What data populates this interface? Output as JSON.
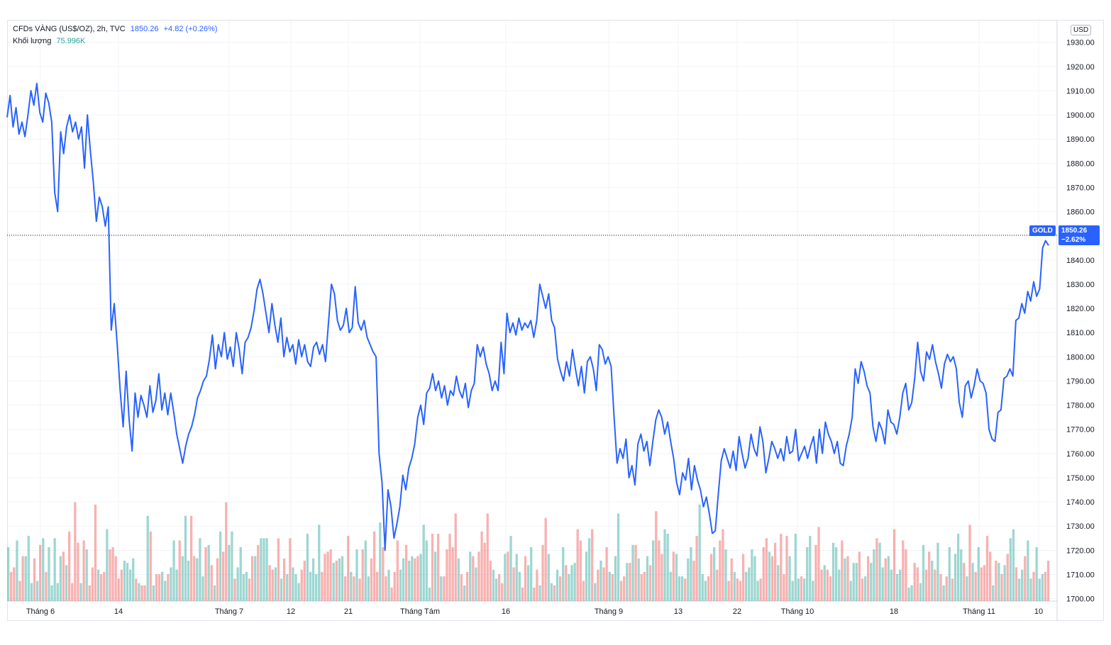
{
  "legend": {
    "symbol": "CFDs VÀNG (US$/OZ), 2h, TVC",
    "last_price": "1850.26",
    "change": "+4.82 (+0.26%)",
    "volume_label": "Khối lượng",
    "volume_value": "75.996K"
  },
  "axis": {
    "currency": "USD",
    "last_label": "GOLD",
    "last_price": "1850.26",
    "last_change_pct": "−2.62%"
  },
  "colors": {
    "line": "#2962ff",
    "vol_up": "#26a69a",
    "vol_down": "#ef5350",
    "grid": "#f0f3fa",
    "text": "#131722"
  },
  "chart_data": {
    "type": "line",
    "x_ticks": [
      "Tháng 6",
      "14",
      "Tháng 7",
      "12",
      "21",
      "Tháng Tám",
      "16",
      "Tháng 9",
      "13",
      "22",
      "Tháng 10",
      "18",
      "Tháng 11",
      "10"
    ],
    "y_ticks": [
      1700,
      1710,
      1720,
      1730,
      1740,
      1750,
      1760,
      1770,
      1780,
      1790,
      1800,
      1810,
      1820,
      1830,
      1840,
      1850,
      1860,
      1870,
      1880,
      1890,
      1900,
      1910,
      1920,
      1930
    ],
    "ylim": [
      1699,
      1939
    ],
    "last_price": 1850.26,
    "grid": true,
    "series": [
      {
        "price": [
          1899,
          1908,
          1895,
          1903,
          1892,
          1897,
          1891,
          1900,
          1910,
          1904,
          1913,
          1901,
          1897,
          1909,
          1905,
          1897,
          1868,
          1860,
          1893,
          1884,
          1895,
          1900,
          1893,
          1897,
          1890,
          1895,
          1878,
          1900,
          1885,
          1872,
          1856,
          1866,
          1862,
          1854,
          1862,
          1811,
          1822,
          1805,
          1786,
          1771,
          1794,
          1774,
          1761,
          1785,
          1775,
          1784,
          1780,
          1775,
          1788,
          1777,
          1782,
          1793,
          1778,
          1785,
          1776,
          1785,
          1777,
          1768,
          1762,
          1756,
          1763,
          1768,
          1771,
          1776,
          1783,
          1786,
          1790,
          1792,
          1799,
          1809,
          1795,
          1805,
          1800,
          1810,
          1799,
          1804,
          1796,
          1810,
          1803,
          1793,
          1806,
          1808,
          1812,
          1819,
          1828,
          1832,
          1826,
          1818,
          1810,
          1822,
          1813,
          1806,
          1816,
          1800,
          1808,
          1802,
          1805,
          1797,
          1807,
          1800,
          1805,
          1798,
          1796,
          1804,
          1806,
          1801,
          1805,
          1798,
          1814,
          1830,
          1826,
          1815,
          1811,
          1813,
          1820,
          1810,
          1812,
          1829,
          1814,
          1811,
          1815,
          1808,
          1805,
          1802,
          1800,
          1760,
          1748,
          1720,
          1745,
          1738,
          1725,
          1731,
          1738,
          1751,
          1745,
          1754,
          1758,
          1764,
          1775,
          1780,
          1772,
          1785,
          1787,
          1793,
          1786,
          1790,
          1783,
          1788,
          1780,
          1786,
          1784,
          1792,
          1786,
          1783,
          1789,
          1779,
          1786,
          1789,
          1805,
          1800,
          1804,
          1797,
          1793,
          1786,
          1790,
          1786,
          1806,
          1793,
          1818,
          1810,
          1814,
          1809,
          1816,
          1811,
          1814,
          1812,
          1815,
          1808,
          1815,
          1830,
          1825,
          1820,
          1826,
          1815,
          1812,
          1799,
          1794,
          1790,
          1798,
          1792,
          1803,
          1795,
          1788,
          1796,
          1785,
          1798,
          1800,
          1795,
          1786,
          1805,
          1803,
          1797,
          1800,
          1796,
          1775,
          1756,
          1762,
          1758,
          1766,
          1750,
          1755,
          1747,
          1764,
          1768,
          1761,
          1765,
          1755,
          1765,
          1774,
          1778,
          1775,
          1768,
          1773,
          1765,
          1758,
          1748,
          1743,
          1752,
          1749,
          1758,
          1745,
          1755,
          1749,
          1745,
          1738,
          1742,
          1735,
          1727,
          1728,
          1743,
          1757,
          1762,
          1758,
          1754,
          1761,
          1753,
          1767,
          1760,
          1754,
          1758,
          1768,
          1762,
          1759,
          1771,
          1765,
          1752,
          1758,
          1765,
          1762,
          1758,
          1762,
          1757,
          1767,
          1760,
          1761,
          1770,
          1757,
          1760,
          1763,
          1758,
          1763,
          1767,
          1756,
          1770,
          1760,
          1773,
          1768,
          1765,
          1760,
          1765,
          1756,
          1755,
          1763,
          1768,
          1775,
          1795,
          1789,
          1798,
          1794,
          1788,
          1785,
          1771,
          1765,
          1773,
          1770,
          1764,
          1778,
          1773,
          1772,
          1768,
          1775,
          1785,
          1789,
          1778,
          1781,
          1791,
          1806,
          1794,
          1790,
          1802,
          1799,
          1805,
          1798,
          1793,
          1787,
          1797,
          1801,
          1798,
          1800,
          1795,
          1781,
          1775,
          1788,
          1790,
          1783,
          1788,
          1795,
          1790,
          1789,
          1785,
          1770,
          1766,
          1765,
          1777,
          1778,
          1791,
          1792,
          1795,
          1792,
          1815,
          1816,
          1822,
          1818,
          1827,
          1823,
          1831,
          1825,
          1828,
          1845,
          1848,
          1846
        ]
      },
      {
        "volume": [
          24,
          13,
          15,
          27,
          9,
          20,
          20,
          29,
          8,
          19,
          9,
          25,
          28,
          13,
          24,
          7,
          28,
          8,
          20,
          22,
          16,
          31,
          8,
          44,
          26,
          8,
          27,
          23,
          7,
          15,
          43,
          14,
          12,
          13,
          32,
          23,
          24,
          20,
          10,
          14,
          18,
          17,
          14,
          19,
          10,
          8,
          7,
          7,
          38,
          31,
          7,
          12,
          12,
          13,
          9,
          12,
          15,
          27,
          14,
          27,
          20,
          38,
          18,
          38,
          20,
          19,
          28,
          11,
          24,
          25,
          16,
          7,
          19,
          31,
          22,
          44,
          25,
          31,
          10,
          15,
          24,
          12,
          13,
          10,
          20,
          20,
          25,
          28,
          28,
          28,
          16,
          14,
          15,
          28,
          10,
          19,
          12,
          28,
          15,
          12,
          8,
          14,
          18,
          30,
          13,
          19,
          12,
          34,
          13,
          21,
          22,
          23,
          17,
          18,
          19,
          20,
          11,
          29,
          13,
          11,
          23,
          10,
          23,
          27,
          11,
          19,
          31,
          13,
          35,
          24,
          11,
          14,
          6,
          13,
          27,
          14,
          19,
          25,
          18,
          20,
          19,
          20,
          21,
          34,
          27,
          6,
          30,
          22,
          30,
          11,
          11,
          23,
          30,
          24,
          39,
          19,
          12,
          7,
          13,
          22,
          20,
          15,
          22,
          31,
          26,
          39,
          18,
          14,
          10,
          12,
          8,
          21,
          22,
          29,
          15,
          21,
          13,
          6,
          20,
          16,
          24,
          6,
          14,
          7,
          25,
          37,
          21,
          8,
          7,
          14,
          11,
          24,
          16,
          12,
          16,
          17,
          32,
          27,
          9,
          22,
          28,
          32,
          8,
          14,
          18,
          15,
          24,
          13,
          12,
          20,
          39,
          9,
          11,
          17,
          17,
          25,
          25,
          19,
          12,
          13,
          20,
          16,
          27,
          40,
          27,
          21,
          32,
          30,
          13,
          22,
          21,
          11,
          11,
          10,
          19,
          24,
          18,
          29,
          43,
          12,
          9,
          11,
          21,
          24,
          14,
          27,
          32,
          23,
          9,
          19,
          13,
          10,
          9,
          21,
          13,
          15,
          23,
          20,
          9,
          10,
          24,
          28,
          22,
          20,
          26,
          16,
          30,
          12,
          29,
          20,
          9,
          30,
          10,
          11,
          10,
          24,
          29,
          9,
          25,
          33,
          14,
          16,
          14,
          11,
          26,
          24,
          14,
          27,
          19,
          20,
          9,
          17,
          17,
          22,
          10,
          11,
          20,
          17,
          23,
          28,
          26,
          15,
          19,
          20,
          14,
          32,
          12,
          14,
          27,
          23,
          6,
          7,
          17,
          15,
          8,
          25,
          14,
          22,
          18,
          14,
          26,
          12,
          7,
          11,
          24,
          10,
          21,
          30,
          23,
          17,
          11,
          34,
          17,
          13,
          24,
          15,
          16,
          29,
          22,
          7,
          18,
          17,
          12,
          16,
          21,
          28,
          32,
          15,
          10,
          14,
          20,
          27,
          10,
          13,
          24,
          10,
          12,
          13,
          18
        ],
        "up": [
          1,
          0,
          0,
          1,
          0,
          0,
          1,
          1,
          1,
          0,
          1,
          0,
          1,
          0,
          1,
          1,
          1,
          1,
          1,
          0,
          1,
          0,
          0,
          0,
          0,
          1,
          0,
          1,
          0,
          0,
          0,
          1,
          0,
          0,
          1,
          0,
          0,
          0,
          0,
          0,
          1,
          1,
          1,
          1,
          0,
          1,
          0,
          0,
          1,
          0,
          1,
          0,
          0,
          1,
          1,
          0,
          1,
          1,
          1,
          0,
          1,
          1,
          1,
          0,
          0,
          1,
          1,
          1,
          0,
          1,
          0,
          1,
          0,
          1,
          0,
          0,
          1,
          1,
          0,
          1,
          1,
          1,
          1,
          0,
          0,
          1,
          0,
          1,
          1,
          1,
          0,
          0,
          1,
          0,
          1,
          0,
          1,
          0,
          1,
          1,
          1,
          0,
          0,
          1,
          1,
          1,
          1,
          1,
          0,
          0,
          0,
          0,
          1,
          0,
          1,
          1,
          0,
          0,
          1,
          0,
          1,
          0,
          0,
          1,
          1,
          0,
          0,
          0,
          1,
          0,
          0,
          1,
          0,
          0,
          0,
          1,
          1,
          0,
          1,
          1,
          0,
          0,
          1,
          1,
          1,
          1,
          0,
          1,
          0,
          1,
          0,
          0,
          0,
          0,
          0,
          1,
          0,
          1,
          0,
          1,
          0,
          1,
          0,
          0,
          0,
          0,
          0,
          1,
          1,
          0,
          0,
          1,
          0,
          1,
          0,
          1,
          1,
          0,
          0,
          1,
          1,
          0,
          0,
          1,
          0,
          0,
          1,
          1,
          0,
          1,
          0,
          1,
          0,
          1,
          1,
          1,
          0,
          0,
          0,
          1,
          1,
          0,
          1,
          0,
          1,
          0,
          0,
          1,
          0,
          1,
          1,
          0,
          0,
          1,
          0,
          1,
          0,
          1,
          0,
          0,
          1,
          0,
          1,
          0,
          0,
          0,
          1,
          1,
          1,
          0,
          1,
          1,
          1,
          0,
          1,
          1,
          0,
          0,
          1,
          1,
          1,
          0,
          0,
          1,
          0,
          0,
          0,
          1,
          0,
          0,
          1,
          0,
          0,
          0,
          1,
          1,
          1,
          1,
          1,
          0,
          0,
          0,
          1,
          0,
          0,
          1,
          0,
          0,
          0,
          1,
          1,
          1,
          1,
          0,
          1,
          1,
          1,
          1,
          0,
          0,
          0,
          1,
          0,
          0,
          1,
          1,
          1,
          0,
          1,
          0,
          1,
          1,
          1,
          0,
          0,
          1,
          0,
          1,
          1,
          0,
          1,
          1,
          0,
          1,
          1,
          0,
          1,
          1,
          0,
          0,
          1,
          1,
          0,
          0,
          1,
          1,
          0,
          0,
          1,
          0,
          1,
          0,
          1,
          0,
          1,
          0,
          1,
          1,
          1,
          0,
          1,
          0,
          1,
          0,
          1,
          0,
          0,
          0,
          0,
          1,
          0,
          1,
          0,
          1,
          0,
          1,
          1,
          0,
          1,
          1,
          0,
          1,
          1,
          0,
          1,
          1,
          1,
          0,
          0
        ]
      }
    ]
  }
}
